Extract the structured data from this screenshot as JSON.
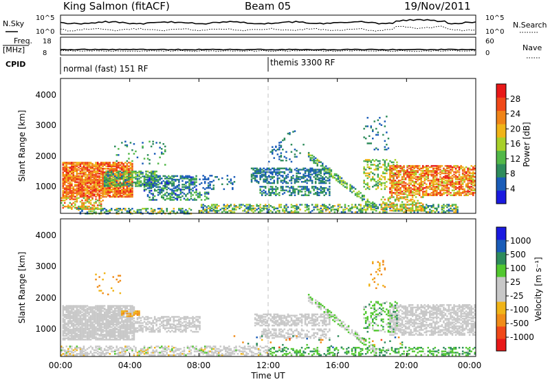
{
  "header": {
    "station": "King Salmon (fitACF)",
    "beam": "Beam 05",
    "date": "19/Nov/2011"
  },
  "top_panels": {
    "nsky_label": "N.Sky",
    "nsearch_label": "N.Search",
    "noise_ticks_left": [
      "10^5",
      "10^0"
    ],
    "noise_ticks_right": [
      "10^5",
      "10^0"
    ],
    "freq_label_1": "Freq.",
    "freq_label_2": "[MHz]",
    "freq_ticks": [
      "18",
      "8"
    ],
    "nave_label": "Nave",
    "nave_ticks": [
      "60",
      "0"
    ],
    "cpid_label": "CPID",
    "cpid_1": "normal (fast) 151 RF",
    "cpid_2": "themis 3300 RF"
  },
  "colors": {
    "power_scale": [
      "#1a1ae0",
      "#1a5cb8",
      "#2e8c5c",
      "#52b848",
      "#a8d02a",
      "#f0b418",
      "#f08418",
      "#f04818",
      "#e81818"
    ],
    "velocity_scale": [
      "#e81818",
      "#f04818",
      "#f08c18",
      "#f0b418",
      "#c8c8c8",
      "#c8c8c8",
      "#52c830",
      "#2e8c5c",
      "#1a5cb8",
      "#1a1ae0"
    ],
    "dash_line": "#c0c0c0"
  },
  "chart_data": [
    {
      "type": "heatmap",
      "name": "power",
      "x_axis": "Time UT",
      "xlim_hours": [
        0,
        24
      ],
      "ylabel": "Slant Range [km]",
      "ylim": [
        180,
        4600
      ],
      "y_ticks": [
        "1000",
        "2000",
        "3000",
        "4000"
      ],
      "colorbar_label": "Power [dB]",
      "colorbar_ticks": [
        "4",
        "8",
        "12",
        "16",
        "20",
        "24",
        "28"
      ],
      "colorbar_range": [
        0,
        32
      ],
      "scatter_regions": [
        {
          "t": [
            0.1,
            4.2
          ],
          "r": [
            750,
            1900
          ],
          "v": [
            18,
            30
          ],
          "d": 0.8
        },
        {
          "t": [
            0.0,
            2.5
          ],
          "r": [
            350,
            750
          ],
          "v": [
            12,
            28
          ],
          "d": 0.45
        },
        {
          "t": [
            2.5,
            5.5
          ],
          "r": [
            1100,
            1600
          ],
          "v": [
            6,
            16
          ],
          "d": 0.6
        },
        {
          "t": [
            4.8,
            7.8
          ],
          "r": [
            950,
            1450
          ],
          "v": [
            3,
            12
          ],
          "d": 0.55
        },
        {
          "t": [
            3.0,
            6.0
          ],
          "r": [
            1800,
            2600
          ],
          "v": [
            4,
            14
          ],
          "d": 0.07
        },
        {
          "t": [
            5.0,
            8.5
          ],
          "r": [
            650,
            900
          ],
          "v": [
            3,
            14
          ],
          "d": 0.4
        },
        {
          "t": [
            1.0,
            7.5
          ],
          "r": [
            200,
            400
          ],
          "v": [
            4,
            20
          ],
          "d": 0.5
        },
        {
          "t": [
            8.0,
            10.0
          ],
          "r": [
            1000,
            1450
          ],
          "v": [
            4,
            8
          ],
          "d": 0.25
        },
        {
          "t": [
            8.0,
            23.0
          ],
          "r": [
            250,
            500
          ],
          "v": [
            4,
            20
          ],
          "d": 0.45
        },
        {
          "t": [
            11.0,
            15.5
          ],
          "r": [
            1200,
            1700
          ],
          "v": [
            4,
            10
          ],
          "d": 0.55
        },
        {
          "t": [
            11.5,
            15.5
          ],
          "r": [
            800,
            1100
          ],
          "v": [
            4,
            12
          ],
          "d": 0.5
        },
        {
          "t": [
            12.0,
            14.0
          ],
          "r": [
            1900,
            2500
          ],
          "v": [
            4,
            10
          ],
          "d": 0.08
        },
        {
          "t": [
            17.5,
            19.0
          ],
          "r": [
            2300,
            3400
          ],
          "v": [
            4,
            10
          ],
          "d": 0.1
        },
        {
          "t": [
            17.5,
            19.5
          ],
          "r": [
            1000,
            2000
          ],
          "v": [
            8,
            20
          ],
          "d": 0.35
        },
        {
          "t": [
            19.0,
            24.0
          ],
          "r": [
            800,
            1800
          ],
          "v": [
            16,
            30
          ],
          "d": 0.65
        },
        {
          "t": [
            18.5,
            21.0
          ],
          "r": [
            300,
            750
          ],
          "v": [
            12,
            24
          ],
          "d": 0.4
        }
      ],
      "bands": [
        {
          "t": [
            14.3,
            18.3
          ],
          "r": [
            2100,
            350
          ],
          "w": 220,
          "v": [
            6,
            18
          ],
          "d": 0.55
        },
        {
          "t": [
            12.0,
            13.5
          ],
          "r": [
            2100,
            3000
          ],
          "w": 200,
          "v": [
            4,
            10
          ],
          "d": 0.2
        }
      ]
    },
    {
      "type": "heatmap",
      "name": "velocity",
      "x_axis": "Time UT",
      "xlabel": "Time UT",
      "xlim_hours": [
        0,
        24
      ],
      "x_ticks": [
        "00:00",
        "04:00",
        "08:00",
        "12:00",
        "16:00",
        "20:00",
        "00:00"
      ],
      "ylabel": "Slant Range [km]",
      "ylim": [
        180,
        4600
      ],
      "y_ticks": [
        "1000",
        "2000",
        "3000",
        "4000"
      ],
      "colorbar_label": "Velocity [m s⁻¹]",
      "colorbar_ticks": [
        "1000",
        "500",
        "100",
        "25",
        "-25",
        "-100",
        "-500",
        "-1000"
      ],
      "scatter_regions": [
        {
          "t": [
            0.1,
            4.3
          ],
          "r": [
            750,
            1850
          ],
          "v": [
            -20,
            20
          ],
          "d": 0.85
        },
        {
          "t": [
            0.0,
            12.0
          ],
          "r": [
            250,
            550
          ],
          "v": [
            -30,
            30
          ],
          "d": 0.5
        },
        {
          "t": [
            4.3,
            8.0
          ],
          "r": [
            1000,
            1500
          ],
          "v": [
            -20,
            20
          ],
          "d": 0.55
        },
        {
          "t": [
            3.5,
            4.5
          ],
          "r": [
            1500,
            1700
          ],
          "v": [
            -150,
            -60
          ],
          "d": 0.5
        },
        {
          "t": [
            11.2,
            15.5
          ],
          "r": [
            1200,
            1600
          ],
          "v": [
            -20,
            20
          ],
          "d": 0.6
        },
        {
          "t": [
            11.5,
            15.5
          ],
          "r": [
            800,
            1100
          ],
          "v": [
            -20,
            20
          ],
          "d": 0.45
        },
        {
          "t": [
            12.0,
            24.0
          ],
          "r": [
            250,
            500
          ],
          "v": [
            20,
            150
          ],
          "d": 0.35
        },
        {
          "t": [
            19.0,
            24.0
          ],
          "r": [
            900,
            1900
          ],
          "v": [
            -20,
            20
          ],
          "d": 0.65
        },
        {
          "t": [
            17.5,
            19.5
          ],
          "r": [
            1000,
            2000
          ],
          "v": [
            -20,
            120
          ],
          "d": 0.3
        },
        {
          "t": [
            17.8,
            18.8
          ],
          "r": [
            2400,
            3300
          ],
          "v": [
            -200,
            -50
          ],
          "d": 0.12
        },
        {
          "t": [
            2.0,
            3.5
          ],
          "r": [
            2200,
            2900
          ],
          "v": [
            -200,
            -50
          ],
          "d": 0.06
        },
        {
          "t": [
            10.0,
            20.0
          ],
          "r": [
            500,
            900
          ],
          "v": [
            -600,
            600
          ],
          "d": 0.04
        }
      ],
      "bands": [
        {
          "t": [
            14.3,
            18.3
          ],
          "r": [
            2100,
            350
          ],
          "w": 220,
          "v": [
            -20,
            60
          ],
          "d": 0.55
        }
      ]
    }
  ]
}
